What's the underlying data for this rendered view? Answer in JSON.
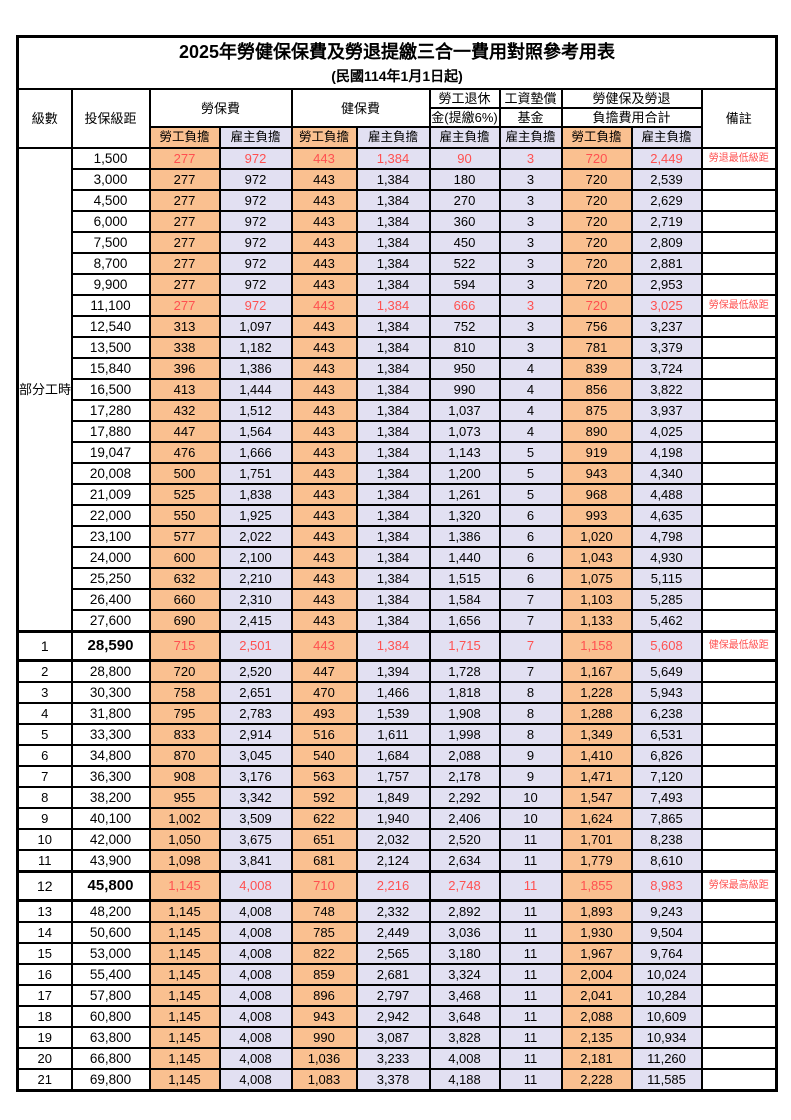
{
  "title": "2025年勞健保保費及勞退提繳三合一費用對照參考用表",
  "subtitle": "(民國114年1月1日起)",
  "header": {
    "level": "級數",
    "bracket": "投保級距",
    "labor": "勞保費",
    "health": "健保費",
    "pension_line1": "勞工退休",
    "pension_line2": "金(提繳6%)",
    "wage_fund_line1": "工資墊償",
    "wage_fund_line2": "基金",
    "total_line1": "勞健保及勞退",
    "total_line2": "負擔費用合計",
    "remark": "備註",
    "employee": "勞工負擔",
    "employer": "雇主負擔"
  },
  "part_time_label": "部分工時",
  "colors": {
    "employee_bg": "#FAC090",
    "employer_bg": "#E2E0F2",
    "highlight_text": "#FF5050",
    "border": "#000000"
  },
  "rows": [
    {
      "lv": "",
      "amt": "1,500",
      "v": [
        "277",
        "972",
        "443",
        "1,384",
        "90",
        "3",
        "720",
        "2,449"
      ],
      "note": "勞退最低級距",
      "red": true,
      "big": false
    },
    {
      "lv": "",
      "amt": "3,000",
      "v": [
        "277",
        "972",
        "443",
        "1,384",
        "180",
        "3",
        "720",
        "2,539"
      ],
      "note": "",
      "red": false,
      "big": false
    },
    {
      "lv": "",
      "amt": "4,500",
      "v": [
        "277",
        "972",
        "443",
        "1,384",
        "270",
        "3",
        "720",
        "2,629"
      ],
      "note": "",
      "red": false,
      "big": false
    },
    {
      "lv": "",
      "amt": "6,000",
      "v": [
        "277",
        "972",
        "443",
        "1,384",
        "360",
        "3",
        "720",
        "2,719"
      ],
      "note": "",
      "red": false,
      "big": false
    },
    {
      "lv": "",
      "amt": "7,500",
      "v": [
        "277",
        "972",
        "443",
        "1,384",
        "450",
        "3",
        "720",
        "2,809"
      ],
      "note": "",
      "red": false,
      "big": false
    },
    {
      "lv": "",
      "amt": "8,700",
      "v": [
        "277",
        "972",
        "443",
        "1,384",
        "522",
        "3",
        "720",
        "2,881"
      ],
      "note": "",
      "red": false,
      "big": false
    },
    {
      "lv": "",
      "amt": "9,900",
      "v": [
        "277",
        "972",
        "443",
        "1,384",
        "594",
        "3",
        "720",
        "2,953"
      ],
      "note": "",
      "red": false,
      "big": false
    },
    {
      "lv": "",
      "amt": "11,100",
      "v": [
        "277",
        "972",
        "443",
        "1,384",
        "666",
        "3",
        "720",
        "3,025"
      ],
      "note": "勞保最低級距",
      "red": true,
      "big": false
    },
    {
      "lv": "",
      "amt": "12,540",
      "v": [
        "313",
        "1,097",
        "443",
        "1,384",
        "752",
        "3",
        "756",
        "3,237"
      ],
      "note": "",
      "red": false,
      "big": false
    },
    {
      "lv": "",
      "amt": "13,500",
      "v": [
        "338",
        "1,182",
        "443",
        "1,384",
        "810",
        "3",
        "781",
        "3,379"
      ],
      "note": "",
      "red": false,
      "big": false
    },
    {
      "lv": "",
      "amt": "15,840",
      "v": [
        "396",
        "1,386",
        "443",
        "1,384",
        "950",
        "4",
        "839",
        "3,724"
      ],
      "note": "",
      "red": false,
      "big": false
    },
    {
      "lv": "",
      "amt": "16,500",
      "v": [
        "413",
        "1,444",
        "443",
        "1,384",
        "990",
        "4",
        "856",
        "3,822"
      ],
      "note": "",
      "red": false,
      "big": false
    },
    {
      "lv": "",
      "amt": "17,280",
      "v": [
        "432",
        "1,512",
        "443",
        "1,384",
        "1,037",
        "4",
        "875",
        "3,937"
      ],
      "note": "",
      "red": false,
      "big": false
    },
    {
      "lv": "",
      "amt": "17,880",
      "v": [
        "447",
        "1,564",
        "443",
        "1,384",
        "1,073",
        "4",
        "890",
        "4,025"
      ],
      "note": "",
      "red": false,
      "big": false
    },
    {
      "lv": "",
      "amt": "19,047",
      "v": [
        "476",
        "1,666",
        "443",
        "1,384",
        "1,143",
        "5",
        "919",
        "4,198"
      ],
      "note": "",
      "red": false,
      "big": false
    },
    {
      "lv": "",
      "amt": "20,008",
      "v": [
        "500",
        "1,751",
        "443",
        "1,384",
        "1,200",
        "5",
        "943",
        "4,340"
      ],
      "note": "",
      "red": false,
      "big": false
    },
    {
      "lv": "",
      "amt": "21,009",
      "v": [
        "525",
        "1,838",
        "443",
        "1,384",
        "1,261",
        "5",
        "968",
        "4,488"
      ],
      "note": "",
      "red": false,
      "big": false
    },
    {
      "lv": "",
      "amt": "22,000",
      "v": [
        "550",
        "1,925",
        "443",
        "1,384",
        "1,320",
        "6",
        "993",
        "4,635"
      ],
      "note": "",
      "red": false,
      "big": false
    },
    {
      "lv": "",
      "amt": "23,100",
      "v": [
        "577",
        "2,022",
        "443",
        "1,384",
        "1,386",
        "6",
        "1,020",
        "4,798"
      ],
      "note": "",
      "red": false,
      "big": false
    },
    {
      "lv": "",
      "amt": "24,000",
      "v": [
        "600",
        "2,100",
        "443",
        "1,384",
        "1,440",
        "6",
        "1,043",
        "4,930"
      ],
      "note": "",
      "red": false,
      "big": false
    },
    {
      "lv": "",
      "amt": "25,250",
      "v": [
        "632",
        "2,210",
        "443",
        "1,384",
        "1,515",
        "6",
        "1,075",
        "5,115"
      ],
      "note": "",
      "red": false,
      "big": false
    },
    {
      "lv": "",
      "amt": "26,400",
      "v": [
        "660",
        "2,310",
        "443",
        "1,384",
        "1,584",
        "7",
        "1,103",
        "5,285"
      ],
      "note": "",
      "red": false,
      "big": false
    },
    {
      "lv": "",
      "amt": "27,600",
      "v": [
        "690",
        "2,415",
        "443",
        "1,384",
        "1,656",
        "7",
        "1,133",
        "5,462"
      ],
      "note": "",
      "red": false,
      "big": false
    },
    {
      "lv": "1",
      "amt": "28,590",
      "v": [
        "715",
        "2,501",
        "443",
        "1,384",
        "1,715",
        "7",
        "1,158",
        "5,608"
      ],
      "note": "健保最低級距",
      "red": true,
      "big": true
    },
    {
      "lv": "2",
      "amt": "28,800",
      "v": [
        "720",
        "2,520",
        "447",
        "1,394",
        "1,728",
        "7",
        "1,167",
        "5,649"
      ],
      "note": "",
      "red": false,
      "big": false
    },
    {
      "lv": "3",
      "amt": "30,300",
      "v": [
        "758",
        "2,651",
        "470",
        "1,466",
        "1,818",
        "8",
        "1,228",
        "5,943"
      ],
      "note": "",
      "red": false,
      "big": false
    },
    {
      "lv": "4",
      "amt": "31,800",
      "v": [
        "795",
        "2,783",
        "493",
        "1,539",
        "1,908",
        "8",
        "1,288",
        "6,238"
      ],
      "note": "",
      "red": false,
      "big": false
    },
    {
      "lv": "5",
      "amt": "33,300",
      "v": [
        "833",
        "2,914",
        "516",
        "1,611",
        "1,998",
        "8",
        "1,349",
        "6,531"
      ],
      "note": "",
      "red": false,
      "big": false
    },
    {
      "lv": "6",
      "amt": "34,800",
      "v": [
        "870",
        "3,045",
        "540",
        "1,684",
        "2,088",
        "9",
        "1,410",
        "6,826"
      ],
      "note": "",
      "red": false,
      "big": false
    },
    {
      "lv": "7",
      "amt": "36,300",
      "v": [
        "908",
        "3,176",
        "563",
        "1,757",
        "2,178",
        "9",
        "1,471",
        "7,120"
      ],
      "note": "",
      "red": false,
      "big": false
    },
    {
      "lv": "8",
      "amt": "38,200",
      "v": [
        "955",
        "3,342",
        "592",
        "1,849",
        "2,292",
        "10",
        "1,547",
        "7,493"
      ],
      "note": "",
      "red": false,
      "big": false
    },
    {
      "lv": "9",
      "amt": "40,100",
      "v": [
        "1,002",
        "3,509",
        "622",
        "1,940",
        "2,406",
        "10",
        "1,624",
        "7,865"
      ],
      "note": "",
      "red": false,
      "big": false
    },
    {
      "lv": "10",
      "amt": "42,000",
      "v": [
        "1,050",
        "3,675",
        "651",
        "2,032",
        "2,520",
        "11",
        "1,701",
        "8,238"
      ],
      "note": "",
      "red": false,
      "big": false
    },
    {
      "lv": "11",
      "amt": "43,900",
      "v": [
        "1,098",
        "3,841",
        "681",
        "2,124",
        "2,634",
        "11",
        "1,779",
        "8,610"
      ],
      "note": "",
      "red": false,
      "big": false
    },
    {
      "lv": "12",
      "amt": "45,800",
      "v": [
        "1,145",
        "4,008",
        "710",
        "2,216",
        "2,748",
        "11",
        "1,855",
        "8,983"
      ],
      "note": "勞保最高級距",
      "red": true,
      "big": true
    },
    {
      "lv": "13",
      "amt": "48,200",
      "v": [
        "1,145",
        "4,008",
        "748",
        "2,332",
        "2,892",
        "11",
        "1,893",
        "9,243"
      ],
      "note": "",
      "red": false,
      "big": false
    },
    {
      "lv": "14",
      "amt": "50,600",
      "v": [
        "1,145",
        "4,008",
        "785",
        "2,449",
        "3,036",
        "11",
        "1,930",
        "9,504"
      ],
      "note": "",
      "red": false,
      "big": false
    },
    {
      "lv": "15",
      "amt": "53,000",
      "v": [
        "1,145",
        "4,008",
        "822",
        "2,565",
        "3,180",
        "11",
        "1,967",
        "9,764"
      ],
      "note": "",
      "red": false,
      "big": false
    },
    {
      "lv": "16",
      "amt": "55,400",
      "v": [
        "1,145",
        "4,008",
        "859",
        "2,681",
        "3,324",
        "11",
        "2,004",
        "10,024"
      ],
      "note": "",
      "red": false,
      "big": false
    },
    {
      "lv": "17",
      "amt": "57,800",
      "v": [
        "1,145",
        "4,008",
        "896",
        "2,797",
        "3,468",
        "11",
        "2,041",
        "10,284"
      ],
      "note": "",
      "red": false,
      "big": false
    },
    {
      "lv": "18",
      "amt": "60,800",
      "v": [
        "1,145",
        "4,008",
        "943",
        "2,942",
        "3,648",
        "11",
        "2,088",
        "10,609"
      ],
      "note": "",
      "red": false,
      "big": false
    },
    {
      "lv": "19",
      "amt": "63,800",
      "v": [
        "1,145",
        "4,008",
        "990",
        "3,087",
        "3,828",
        "11",
        "2,135",
        "10,934"
      ],
      "note": "",
      "red": false,
      "big": false
    },
    {
      "lv": "20",
      "amt": "66,800",
      "v": [
        "1,145",
        "4,008",
        "1,036",
        "3,233",
        "4,008",
        "11",
        "2,181",
        "11,260"
      ],
      "note": "",
      "red": false,
      "big": false
    },
    {
      "lv": "21",
      "amt": "69,800",
      "v": [
        "1,145",
        "4,008",
        "1,083",
        "3,378",
        "4,188",
        "11",
        "2,228",
        "11,585"
      ],
      "note": "",
      "red": false,
      "big": false
    }
  ]
}
